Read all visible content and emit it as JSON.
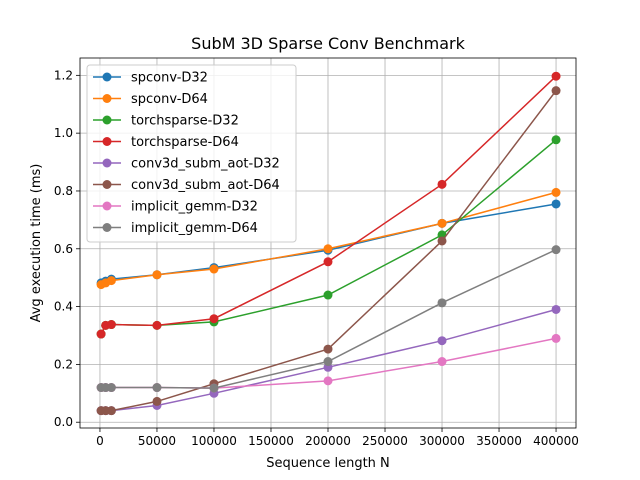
{
  "chart_data": {
    "type": "line",
    "title": "SubM 3D Sparse Conv Benchmark",
    "xlabel": "Sequence length N",
    "ylabel": "Avg execution time (ms)",
    "xlim": [
      -17500,
      417500
    ],
    "ylim": [
      -0.02,
      1.26
    ],
    "x_ticks": [
      0,
      50000,
      100000,
      150000,
      200000,
      250000,
      300000,
      350000,
      400000
    ],
    "x_tick_labels": [
      "0",
      "50000",
      "100000",
      "150000",
      "200000",
      "250000",
      "300000",
      "350000",
      "400000"
    ],
    "y_ticks": [
      0.0,
      0.2,
      0.4,
      0.6,
      0.8,
      1.0,
      1.2
    ],
    "y_tick_labels": [
      "0.0",
      "0.2",
      "0.4",
      "0.6",
      "0.8",
      "1.0",
      "1.2"
    ],
    "grid": true,
    "legend_position": "top-left",
    "x": [
      1000,
      5000,
      10000,
      50000,
      100000,
      200000,
      300000,
      400000
    ],
    "series": [
      {
        "name": "spconv-D32",
        "color": "#1f77b4",
        "values": [
          0.482,
          0.488,
          0.495,
          0.51,
          0.535,
          0.595,
          0.688,
          0.755
        ]
      },
      {
        "name": "spconv-D64",
        "color": "#ff7f0e",
        "values": [
          0.476,
          0.482,
          0.49,
          0.51,
          0.53,
          0.6,
          0.688,
          0.795
        ]
      },
      {
        "name": "torchsparse-D32",
        "color": "#2ca02c",
        "values": [
          0.305,
          0.335,
          0.338,
          0.335,
          0.347,
          0.44,
          0.648,
          0.977
        ]
      },
      {
        "name": "torchsparse-D64",
        "color": "#d62728",
        "values": [
          0.305,
          0.335,
          0.338,
          0.335,
          0.358,
          0.555,
          0.823,
          1.197
        ]
      },
      {
        "name": "conv3d_subm_aot-D32",
        "color": "#9467bd",
        "values": [
          0.04,
          0.04,
          0.04,
          0.058,
          0.1,
          0.19,
          0.282,
          0.39
        ]
      },
      {
        "name": "conv3d_subm_aot-D64",
        "color": "#8c564b",
        "values": [
          0.04,
          0.04,
          0.04,
          0.072,
          0.133,
          0.253,
          0.627,
          1.147
        ]
      },
      {
        "name": "implicit_gemm-D32",
        "color": "#e377c2",
        "values": [
          0.12,
          0.12,
          0.12,
          0.12,
          0.118,
          0.143,
          0.21,
          0.29
        ]
      },
      {
        "name": "implicit_gemm-D64",
        "color": "#7f7f7f",
        "values": [
          0.12,
          0.12,
          0.12,
          0.12,
          0.118,
          0.21,
          0.413,
          0.597
        ]
      }
    ]
  }
}
